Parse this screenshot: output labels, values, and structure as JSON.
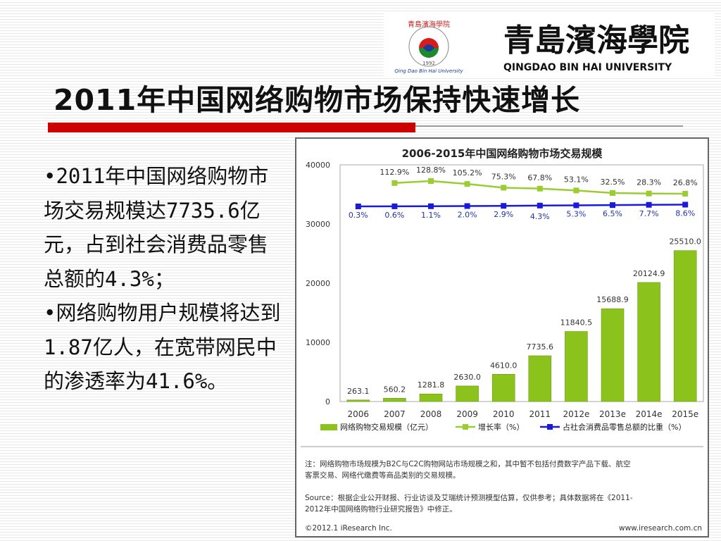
{
  "slide": {
    "title": "2011年中国网络购物市场保持快速增长",
    "bullets": [
      "•2011年中国网络购物市场交易规模达7735.6亿元，占到社会消费品零售总额的4.3%；",
      "•网络购物用户规模将达到1.87亿人，在宽带网民中的渗透率为41.6%。"
    ]
  },
  "logo": {
    "chinese_name": "青島濱海學院",
    "english_name": "QINGDAO BIN HAI UNIVERSITY",
    "seal_text": "青島濱海學院",
    "seal_year": "1992",
    "seal_english": "Qing Dao Bin Hai University"
  },
  "colors": {
    "bar": "#8cc21c",
    "growth_line": "#9acd32",
    "share_line": "#1a1adc",
    "title_bar": "#cc0000"
  },
  "chart_data": {
    "type": "bar",
    "title": "2006-2015年中国网络购物市场交易规模",
    "categories": [
      "2006",
      "2007",
      "2008",
      "2009",
      "2010",
      "2011",
      "2012e",
      "2013e",
      "2014e",
      "2015e"
    ],
    "ylim": [
      0,
      40000
    ],
    "yticks": [
      "40000",
      "30000",
      "20000",
      "10000",
      "0"
    ],
    "grid": false,
    "legend_position": "bottom",
    "series": [
      {
        "name": "网络购物交易规模（亿元）",
        "type": "bar",
        "values": [
          263.1,
          560.2,
          1281.8,
          2630.0,
          4610.0,
          7735.6,
          11840.5,
          15688.9,
          20124.9,
          25510.0
        ],
        "labels": [
          "263.1",
          "560.2",
          "1281.8",
          "2630.0",
          "4610.0",
          "7735.6",
          "11840.5",
          "15688.9",
          "20124.9",
          "25510.0"
        ]
      },
      {
        "name": "增长率（%）",
        "type": "line",
        "values": [
          null,
          112.9,
          128.8,
          105.2,
          75.3,
          67.8,
          53.1,
          32.5,
          28.3,
          26.8
        ],
        "labels": [
          "",
          "112.9%",
          "128.8%",
          "105.2%",
          "75.3%",
          "67.8%",
          "53.1%",
          "32.5%",
          "28.3%",
          "26.8%"
        ]
      },
      {
        "name": "占社会消费品零售总额的比重（%）",
        "type": "line",
        "values": [
          0.3,
          0.6,
          1.1,
          2.0,
          2.9,
          4.3,
          5.3,
          6.5,
          7.7,
          8.6
        ],
        "labels": [
          "0.3%",
          "0.6%",
          "1.1%",
          "2.0%",
          "2.9%",
          "4.3%",
          "5.3%",
          "6.5%",
          "7.7%",
          "8.6%"
        ]
      }
    ],
    "notes": [
      "注：网络购物市场规模为B2C与C2C购物网站市场规模之和，其中暂不包括付费数字产品下载、航空",
      "客票交易、网络代缴费等商品类别的交易规模。"
    ],
    "source": [
      "Source：根据企业公开财报、行业访谈及艾瑞统计预测模型估算，仅供参考；具体数据将在《2011-",
      "2012年中国网络购物行业研究报告》中修正。"
    ],
    "copyright": "©2012.1 iResearch Inc.",
    "website": "www.iresearch.com.cn"
  }
}
